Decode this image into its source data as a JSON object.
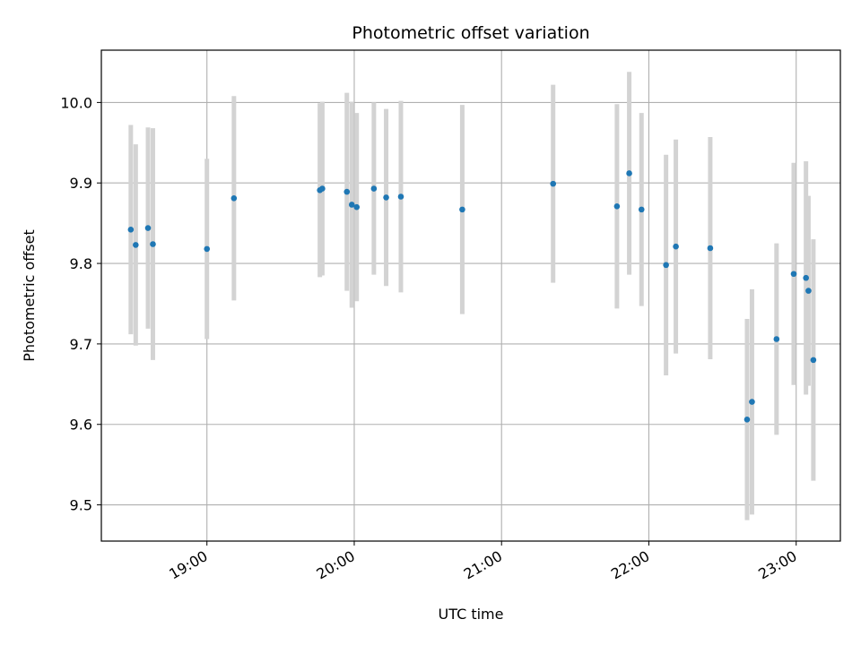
{
  "chart_data": {
    "type": "scatter",
    "title": "Photometric offset variation",
    "xlabel": "UTC time",
    "ylabel": "Photometric offset",
    "x_axis_kind": "time",
    "xlim": [
      "18:17",
      "23:18"
    ],
    "ylim": [
      9.455,
      10.065
    ],
    "grid": true,
    "x_ticks": [
      "19:00",
      "20:00",
      "21:00",
      "22:00",
      "23:00"
    ],
    "y_ticks": [
      9.5,
      9.6,
      9.7,
      9.8,
      9.9,
      10.0
    ],
    "y_tick_labels": [
      "9.5",
      "9.6",
      "9.7",
      "9.8",
      "9.9",
      "10.0"
    ],
    "colors": {
      "point": "#1f77b4",
      "errorbar": "#d3d3d3",
      "grid": "#b0b0b0"
    },
    "series": [
      {
        "points": [
          {
            "x": "18:29",
            "y": 9.842,
            "yerr": 0.13
          },
          {
            "x": "18:31",
            "y": 9.823,
            "yerr": 0.125
          },
          {
            "x": "18:36",
            "y": 9.844,
            "yerr": 0.125
          },
          {
            "x": "18:38",
            "y": 9.824,
            "yerr": 0.144
          },
          {
            "x": "19:00",
            "y": 9.818,
            "yerr": 0.112
          },
          {
            "x": "19:11",
            "y": 9.881,
            "yerr": 0.127
          },
          {
            "x": "19:46",
            "y": 9.891,
            "yerr": 0.108
          },
          {
            "x": "19:47",
            "y": 9.893,
            "yerr": 0.108
          },
          {
            "x": "19:57",
            "y": 9.889,
            "yerr": 0.123
          },
          {
            "x": "19:59",
            "y": 9.873,
            "yerr": 0.128
          },
          {
            "x": "20:01",
            "y": 9.87,
            "yerr": 0.117
          },
          {
            "x": "20:08",
            "y": 9.893,
            "yerr": 0.107
          },
          {
            "x": "20:13",
            "y": 9.882,
            "yerr": 0.11
          },
          {
            "x": "20:19",
            "y": 9.883,
            "yerr": 0.119
          },
          {
            "x": "20:44",
            "y": 9.867,
            "yerr": 0.13
          },
          {
            "x": "21:21",
            "y": 9.899,
            "yerr": 0.123
          },
          {
            "x": "21:47",
            "y": 9.871,
            "yerr": 0.127
          },
          {
            "x": "21:52",
            "y": 9.912,
            "yerr": 0.126
          },
          {
            "x": "21:57",
            "y": 9.867,
            "yerr": 0.12
          },
          {
            "x": "22:07",
            "y": 9.798,
            "yerr": 0.137
          },
          {
            "x": "22:11",
            "y": 9.821,
            "yerr": 0.133
          },
          {
            "x": "22:25",
            "y": 9.819,
            "yerr": 0.138
          },
          {
            "x": "22:40",
            "y": 9.606,
            "yerr": 0.125
          },
          {
            "x": "22:42",
            "y": 9.628,
            "yerr": 0.14
          },
          {
            "x": "22:52",
            "y": 9.706,
            "yerr": 0.119
          },
          {
            "x": "22:59",
            "y": 9.787,
            "yerr": 0.138
          },
          {
            "x": "23:04",
            "y": 9.782,
            "yerr": 0.145
          },
          {
            "x": "23:05",
            "y": 9.766,
            "yerr": 0.118
          },
          {
            "x": "23:07",
            "y": 9.68,
            "yerr": 0.15
          }
        ]
      }
    ]
  }
}
